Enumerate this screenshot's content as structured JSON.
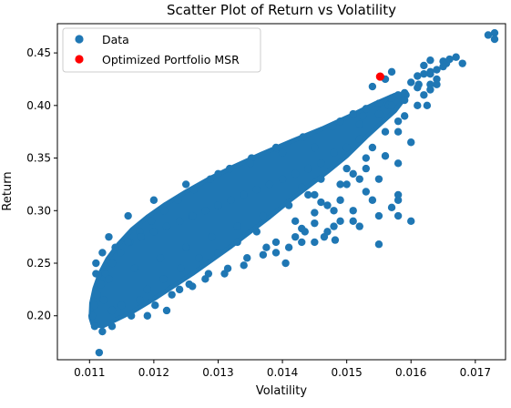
{
  "chart_data": {
    "type": "scatter",
    "title": "Scatter Plot of Return vs Volatility",
    "xlabel": "Volatility",
    "ylabel": "Return",
    "xlim": [
      0.0105,
      0.01747
    ],
    "ylim": [
      0.1582,
      0.4778
    ],
    "xticks": [
      {
        "value": 0.011,
        "label": "0.011"
      },
      {
        "value": 0.012,
        "label": "0.012"
      },
      {
        "value": 0.013,
        "label": "0.013"
      },
      {
        "value": 0.014,
        "label": "0.014"
      },
      {
        "value": 0.015,
        "label": "0.015"
      },
      {
        "value": 0.016,
        "label": "0.016"
      },
      {
        "value": 0.017,
        "label": "0.017"
      }
    ],
    "yticks": [
      {
        "value": 0.2,
        "label": "0.20"
      },
      {
        "value": 0.25,
        "label": "0.25"
      },
      {
        "value": 0.3,
        "label": "0.30"
      },
      {
        "value": 0.35,
        "label": "0.35"
      },
      {
        "value": 0.4,
        "label": "0.40"
      },
      {
        "value": 0.45,
        "label": "0.45"
      }
    ],
    "grid": false,
    "legend_position": "top-left",
    "series": [
      {
        "name": "Data",
        "color": "#1f77b4",
        "points": [
          [
            0.01104,
            0.2
          ],
          [
            0.01108,
            0.21
          ],
          [
            0.01112,
            0.22
          ],
          [
            0.01118,
            0.23
          ],
          [
            0.01125,
            0.24
          ],
          [
            0.01135,
            0.25
          ],
          [
            0.01148,
            0.26
          ],
          [
            0.01162,
            0.27
          ],
          [
            0.01178,
            0.28
          ],
          [
            0.01196,
            0.29
          ],
          [
            0.01216,
            0.3
          ],
          [
            0.01238,
            0.31
          ],
          [
            0.01262,
            0.32
          ],
          [
            0.01288,
            0.33
          ],
          [
            0.01318,
            0.34
          ],
          [
            0.01352,
            0.35
          ],
          [
            0.0139,
            0.36
          ],
          [
            0.01432,
            0.37
          ],
          [
            0.01478,
            0.38
          ],
          [
            0.01525,
            0.39
          ],
          [
            0.01565,
            0.4
          ],
          [
            0.01592,
            0.41
          ],
          [
            0.01612,
            0.42
          ],
          [
            0.0163,
            0.43
          ],
          [
            0.01655,
            0.44
          ],
          [
            0.01108,
            0.19
          ],
          [
            0.0112,
            0.185
          ],
          [
            0.01135,
            0.19
          ],
          [
            0.01115,
            0.165
          ],
          [
            0.01122,
            0.215
          ],
          [
            0.01135,
            0.205
          ],
          [
            0.0115,
            0.21
          ],
          [
            0.01165,
            0.2
          ],
          [
            0.01178,
            0.215
          ],
          [
            0.0119,
            0.225
          ],
          [
            0.01202,
            0.21
          ],
          [
            0.01215,
            0.235
          ],
          [
            0.01228,
            0.22
          ],
          [
            0.01242,
            0.245
          ],
          [
            0.01255,
            0.23
          ],
          [
            0.0127,
            0.255
          ],
          [
            0.01285,
            0.24
          ],
          [
            0.013,
            0.26
          ],
          [
            0.01315,
            0.245
          ],
          [
            0.0133,
            0.27
          ],
          [
            0.01345,
            0.255
          ],
          [
            0.0136,
            0.28
          ],
          [
            0.01375,
            0.265
          ],
          [
            0.0139,
            0.27
          ],
          [
            0.01405,
            0.25
          ],
          [
            0.0142,
            0.275
          ],
          [
            0.01435,
            0.28
          ],
          [
            0.0145,
            0.27
          ],
          [
            0.01465,
            0.275
          ],
          [
            0.01482,
            0.272
          ],
          [
            0.0155,
            0.268
          ],
          [
            0.0152,
            0.285
          ],
          [
            0.0151,
            0.3
          ],
          [
            0.0149,
            0.29
          ],
          [
            0.0153,
            0.318
          ],
          [
            0.0152,
            0.33
          ],
          [
            0.0155,
            0.295
          ],
          [
            0.0157,
            0.303
          ],
          [
            0.0158,
            0.295
          ],
          [
            0.016,
            0.29
          ],
          [
            0.0158,
            0.31
          ],
          [
            0.0158,
            0.315
          ],
          [
            0.0158,
            0.345
          ],
          [
            0.0156,
            0.352
          ],
          [
            0.0154,
            0.36
          ],
          [
            0.0152,
            0.368
          ],
          [
            0.0151,
            0.335
          ],
          [
            0.015,
            0.325
          ],
          [
            0.0149,
            0.31
          ],
          [
            0.0147,
            0.305
          ],
          [
            0.0145,
            0.298
          ],
          [
            0.0142,
            0.29
          ],
          [
            0.0145,
            0.288
          ],
          [
            0.0148,
            0.285
          ],
          [
            0.0143,
            0.283
          ],
          [
            0.0148,
            0.3
          ],
          [
            0.0146,
            0.308
          ],
          [
            0.0144,
            0.315
          ],
          [
            0.0143,
            0.322
          ],
          [
            0.0146,
            0.33
          ],
          [
            0.015,
            0.34
          ],
          [
            0.0153,
            0.35
          ],
          [
            0.0156,
            0.375
          ],
          [
            0.0158,
            0.385
          ],
          [
            0.0159,
            0.39
          ],
          [
            0.0157,
            0.4
          ],
          [
            0.0159,
            0.405
          ],
          [
            0.0161,
            0.4
          ],
          [
            0.0162,
            0.41
          ],
          [
            0.0163,
            0.415
          ],
          [
            0.0164,
            0.42
          ],
          [
            0.0163,
            0.432
          ],
          [
            0.0162,
            0.438
          ],
          [
            0.0163,
            0.443
          ],
          [
            0.0165,
            0.442
          ],
          [
            0.0166,
            0.444
          ],
          [
            0.0164,
            0.434
          ],
          [
            0.0165,
            0.437
          ],
          [
            0.0167,
            0.446
          ],
          [
            0.0168,
            0.44
          ],
          [
            0.0172,
            0.467
          ],
          [
            0.0173,
            0.469
          ],
          [
            0.0173,
            0.463
          ],
          [
            0.0157,
            0.432
          ],
          [
            0.0156,
            0.425
          ],
          [
            0.0154,
            0.418
          ],
          [
            0.0158,
            0.41
          ],
          [
            0.016,
            0.422
          ],
          [
            0.0161,
            0.428
          ],
          [
            0.01625,
            0.4
          ],
          [
            0.0158,
            0.375
          ],
          [
            0.016,
            0.365
          ],
          [
            0.0152,
            0.382
          ],
          [
            0.0155,
            0.392
          ],
          [
            0.015,
            0.36
          ],
          [
            0.0148,
            0.355
          ],
          [
            0.0146,
            0.345
          ],
          [
            0.0144,
            0.34
          ],
          [
            0.0142,
            0.335
          ],
          [
            0.014,
            0.33
          ],
          [
            0.0138,
            0.325
          ],
          [
            0.0136,
            0.32
          ],
          [
            0.0134,
            0.315
          ],
          [
            0.0132,
            0.31
          ],
          [
            0.013,
            0.305
          ],
          [
            0.0128,
            0.3
          ],
          [
            0.0126,
            0.295
          ],
          [
            0.0124,
            0.29
          ],
          [
            0.0122,
            0.285
          ],
          [
            0.012,
            0.28
          ],
          [
            0.0118,
            0.275
          ],
          [
            0.0116,
            0.27
          ],
          [
            0.0114,
            0.265
          ],
          [
            0.0112,
            0.26
          ],
          [
            0.0111,
            0.25
          ],
          [
            0.0113,
            0.235
          ],
          [
            0.0117,
            0.245
          ],
          [
            0.0121,
            0.255
          ],
          [
            0.0125,
            0.265
          ],
          [
            0.0129,
            0.275
          ],
          [
            0.0133,
            0.285
          ],
          [
            0.0137,
            0.295
          ],
          [
            0.0141,
            0.305
          ],
          [
            0.0145,
            0.315
          ],
          [
            0.0149,
            0.325
          ],
          [
            0.0153,
            0.34
          ],
          [
            0.0145,
            0.36
          ],
          [
            0.014,
            0.355
          ],
          [
            0.0135,
            0.345
          ],
          [
            0.013,
            0.335
          ],
          [
            0.0125,
            0.325
          ],
          [
            0.012,
            0.31
          ],
          [
            0.0116,
            0.295
          ],
          [
            0.0113,
            0.275
          ],
          [
            0.0111,
            0.24
          ],
          [
            0.0119,
            0.2
          ],
          [
            0.0122,
            0.205
          ],
          [
            0.0124,
            0.225
          ],
          [
            0.0126,
            0.228
          ],
          [
            0.0128,
            0.235
          ],
          [
            0.0131,
            0.24
          ],
          [
            0.0134,
            0.248
          ],
          [
            0.0137,
            0.258
          ],
          [
            0.0139,
            0.26
          ],
          [
            0.0141,
            0.265
          ],
          [
            0.0143,
            0.27
          ],
          [
            0.0147,
            0.28
          ],
          [
            0.0151,
            0.29
          ],
          [
            0.0154,
            0.31
          ],
          [
            0.0155,
            0.33
          ],
          [
            0.0149,
            0.385
          ],
          [
            0.0151,
            0.392
          ],
          [
            0.0153,
            0.397
          ],
          [
            0.0155,
            0.402
          ],
          [
            0.0157,
            0.407
          ],
          [
            0.0159,
            0.412
          ],
          [
            0.0161,
            0.417
          ],
          [
            0.0163,
            0.42
          ],
          [
            0.0164,
            0.425
          ],
          [
            0.0162,
            0.43
          ]
        ]
      },
      {
        "name": "Optimized Portfolio MSR",
        "color": "#ff0000",
        "points": [
          [
            0.01552,
            0.4275
          ]
        ]
      }
    ]
  }
}
